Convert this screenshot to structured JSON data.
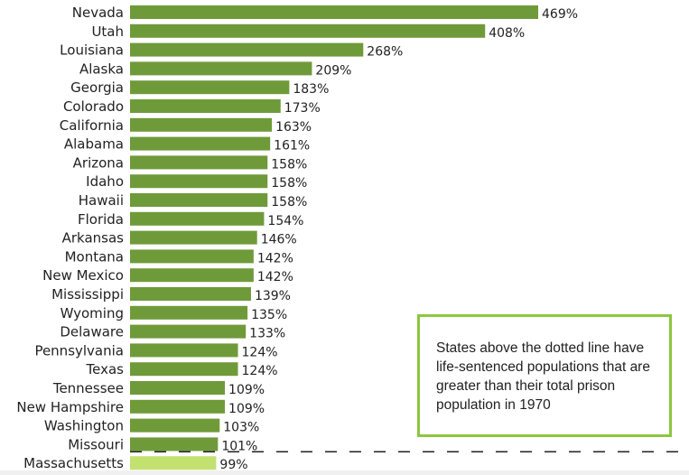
{
  "chart_data": {
    "type": "bar",
    "orientation": "horizontal",
    "categories": [
      "Nevada",
      "Utah",
      "Louisiana",
      "Alaska",
      "Georgia",
      "Colorado",
      "California",
      "Alabama",
      "Arizona",
      "Idaho",
      "Hawaii",
      "Florida",
      "Arkansas",
      "Montana",
      "New Mexico",
      "Mississippi",
      "Wyoming",
      "Delaware",
      "Pennsylvania",
      "Texas",
      "Tennessee",
      "New Hampshire",
      "Washington",
      "Missouri",
      "Massachusetts"
    ],
    "values": [
      469,
      408,
      268,
      209,
      183,
      173,
      163,
      161,
      158,
      158,
      158,
      154,
      146,
      142,
      142,
      139,
      135,
      133,
      124,
      124,
      109,
      109,
      103,
      101,
      99
    ],
    "value_suffix": "%",
    "threshold": 100,
    "threshold_style": "dashed",
    "colors": {
      "above": "#6f9a3a",
      "below": "#c2e170",
      "note_border": "#8dc63f"
    },
    "annotation": "States above the dotted line have life-sentenced populations that are greater than their total prison population in 1970",
    "grid": false
  }
}
